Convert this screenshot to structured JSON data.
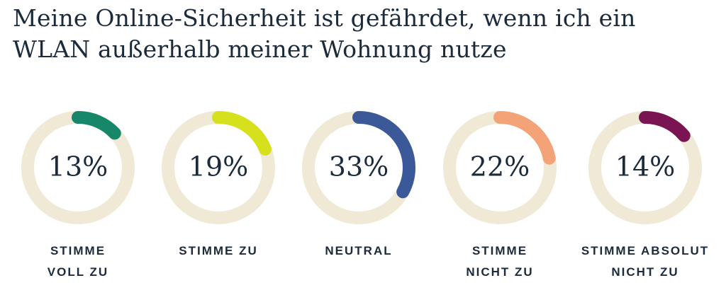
{
  "chart_data": {
    "type": "donut",
    "title": "Meine Online-Sicherheit ist gefährdet, wenn ich ein WLAN außerhalb meiner Wohnung nutze",
    "categories": [
      "STIMME\nVOLL ZU",
      "STIMME ZU",
      "NEUTRAL",
      "STIMME\nNICHT ZU",
      "STIMME ABSOLUT\nNICHT ZU"
    ],
    "values": [
      13,
      19,
      33,
      22,
      14
    ],
    "value_labels": [
      "13%",
      "19%",
      "33%",
      "22%",
      "14%"
    ],
    "colors": [
      "#17876a",
      "#d7e01c",
      "#3b5998",
      "#f4a378",
      "#7b1452"
    ],
    "track_color": "#efe9d5",
    "ylim": [
      0,
      100
    ]
  }
}
